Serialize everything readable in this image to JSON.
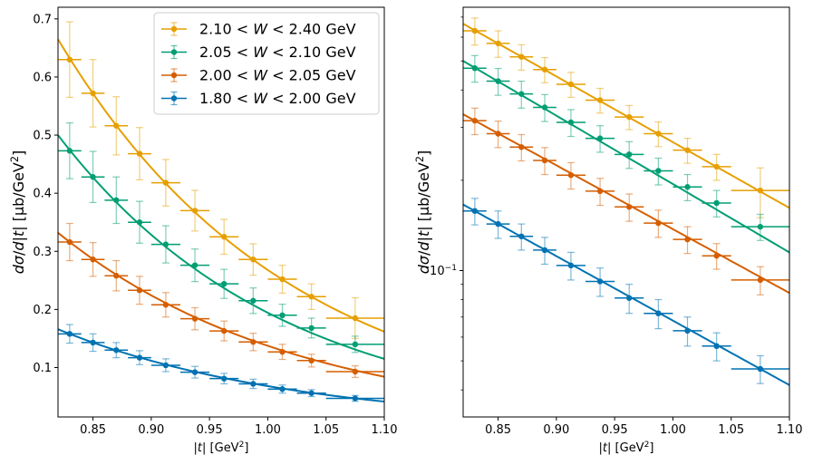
{
  "chart_data": [
    {
      "type": "line",
      "xlabel": "|t| [GeV²]",
      "ylabel": "dσ/d|t| [μb/GeV²]",
      "xscale": "linear",
      "yscale": "linear",
      "xlim": [
        0.82,
        1.1
      ],
      "ylim": [
        0.015,
        0.72
      ],
      "xticks": [
        0.85,
        0.9,
        0.95,
        1.0,
        1.05,
        1.1
      ],
      "xtick_labels": [
        "0.85",
        "0.90",
        "0.95",
        "1.00",
        "1.05",
        "1.10"
      ],
      "yticks": [
        0.1,
        0.2,
        0.3,
        0.4,
        0.5,
        0.6,
        0.7
      ],
      "ytick_labels": [
        "0.1",
        "0.2",
        "0.3",
        "0.4",
        "0.5",
        "0.6",
        "0.7"
      ],
      "grid": false,
      "legend_position": "top-right",
      "legend": [
        "2.10 < W < 2.40 GeV",
        "2.05 < W < 2.10 GeV",
        "2.00 < W < 2.05 GeV",
        "1.80 < W < 2.00 GeV"
      ]
    },
    {
      "type": "line",
      "xlabel": "|t| [GeV²]",
      "ylabel": "dσ/d|t| [μb/GeV²]",
      "xscale": "linear",
      "yscale": "log",
      "xlim": [
        0.82,
        1.1
      ],
      "ylim": [
        0.0325,
        0.755
      ],
      "xticks": [
        0.85,
        0.9,
        0.95,
        1.0,
        1.05,
        1.1
      ],
      "xtick_labels": [
        "0.85",
        "0.90",
        "0.95",
        "1.00",
        "1.05",
        "1.10"
      ],
      "yticks": [
        0.1
      ],
      "ytick_labels": [
        "10⁻¹"
      ],
      "grid": false,
      "legend_position": "none"
    }
  ],
  "series": [
    {
      "name": "2.10 < W < 2.40 GeV",
      "color": "#E69F00",
      "points": [
        {
          "x": 0.83,
          "xerr": 0.01,
          "y": 0.63,
          "yerr": 0.065
        },
        {
          "x": 0.85,
          "xerr": 0.01,
          "y": 0.572,
          "yerr": 0.058
        },
        {
          "x": 0.87,
          "xerr": 0.01,
          "y": 0.516,
          "yerr": 0.05
        },
        {
          "x": 0.89,
          "xerr": 0.01,
          "y": 0.468,
          "yerr": 0.045
        },
        {
          "x": 0.9125,
          "xerr": 0.0125,
          "y": 0.418,
          "yerr": 0.04
        },
        {
          "x": 0.9375,
          "xerr": 0.0125,
          "y": 0.37,
          "yerr": 0.035
        },
        {
          "x": 0.9625,
          "xerr": 0.0125,
          "y": 0.325,
          "yerr": 0.03
        },
        {
          "x": 0.9875,
          "xerr": 0.0125,
          "y": 0.286,
          "yerr": 0.027
        },
        {
          "x": 1.0125,
          "xerr": 0.0125,
          "y": 0.252,
          "yerr": 0.024
        },
        {
          "x": 1.0375,
          "xerr": 0.0125,
          "y": 0.222,
          "yerr": 0.022
        },
        {
          "x": 1.075,
          "xerr": 0.025,
          "y": 0.185,
          "yerr": 0.035
        }
      ],
      "fit": {
        "a": 0.665,
        "b": 5.05
      }
    },
    {
      "name": "2.05 < W < 2.10 GeV",
      "color": "#009E73",
      "points": [
        {
          "x": 0.83,
          "xerr": 0.01,
          "y": 0.473,
          "yerr": 0.048
        },
        {
          "x": 0.85,
          "xerr": 0.01,
          "y": 0.428,
          "yerr": 0.044
        },
        {
          "x": 0.87,
          "xerr": 0.01,
          "y": 0.388,
          "yerr": 0.04
        },
        {
          "x": 0.89,
          "xerr": 0.01,
          "y": 0.35,
          "yerr": 0.036
        },
        {
          "x": 0.9125,
          "xerr": 0.0125,
          "y": 0.312,
          "yerr": 0.032
        },
        {
          "x": 0.9375,
          "xerr": 0.0125,
          "y": 0.276,
          "yerr": 0.028
        },
        {
          "x": 0.9625,
          "xerr": 0.0125,
          "y": 0.244,
          "yerr": 0.025
        },
        {
          "x": 0.9875,
          "xerr": 0.0125,
          "y": 0.215,
          "yerr": 0.022
        },
        {
          "x": 1.0125,
          "xerr": 0.0125,
          "y": 0.19,
          "yerr": 0.019
        },
        {
          "x": 1.0375,
          "xerr": 0.0125,
          "y": 0.168,
          "yerr": 0.017
        },
        {
          "x": 1.075,
          "xerr": 0.025,
          "y": 0.14,
          "yerr": 0.014
        }
      ],
      "fit": {
        "a": 0.5,
        "b": 5.25
      }
    },
    {
      "name": "2.00 < W < 2.05 GeV",
      "color": "#D55E00",
      "points": [
        {
          "x": 0.83,
          "xerr": 0.01,
          "y": 0.316,
          "yerr": 0.032
        },
        {
          "x": 0.85,
          "xerr": 0.01,
          "y": 0.286,
          "yerr": 0.029
        },
        {
          "x": 0.87,
          "xerr": 0.01,
          "y": 0.258,
          "yerr": 0.026
        },
        {
          "x": 0.89,
          "xerr": 0.01,
          "y": 0.233,
          "yerr": 0.024
        },
        {
          "x": 0.9125,
          "xerr": 0.0125,
          "y": 0.208,
          "yerr": 0.021
        },
        {
          "x": 0.9375,
          "xerr": 0.0125,
          "y": 0.184,
          "yerr": 0.019
        },
        {
          "x": 0.9625,
          "xerr": 0.0125,
          "y": 0.163,
          "yerr": 0.017
        },
        {
          "x": 0.9875,
          "xerr": 0.0125,
          "y": 0.144,
          "yerr": 0.015
        },
        {
          "x": 1.0125,
          "xerr": 0.0125,
          "y": 0.127,
          "yerr": 0.013
        },
        {
          "x": 1.0375,
          "xerr": 0.0125,
          "y": 0.112,
          "yerr": 0.011
        },
        {
          "x": 1.075,
          "xerr": 0.025,
          "y": 0.093,
          "yerr": 0.01
        }
      ],
      "fit": {
        "a": 0.332,
        "b": 4.9
      }
    },
    {
      "name": "1.80 < W < 2.00 GeV",
      "color": "#0072B2",
      "points": [
        {
          "x": 0.83,
          "xerr": 0.01,
          "y": 0.158,
          "yerr": 0.016
        },
        {
          "x": 0.85,
          "xerr": 0.01,
          "y": 0.143,
          "yerr": 0.015
        },
        {
          "x": 0.87,
          "xerr": 0.01,
          "y": 0.13,
          "yerr": 0.013
        },
        {
          "x": 0.89,
          "xerr": 0.01,
          "y": 0.117,
          "yerr": 0.012
        },
        {
          "x": 0.9125,
          "xerr": 0.0125,
          "y": 0.104,
          "yerr": 0.011
        },
        {
          "x": 0.9375,
          "xerr": 0.0125,
          "y": 0.092,
          "yerr": 0.01
        },
        {
          "x": 0.9625,
          "xerr": 0.0125,
          "y": 0.081,
          "yerr": 0.009
        },
        {
          "x": 0.9875,
          "xerr": 0.0125,
          "y": 0.072,
          "yerr": 0.008
        },
        {
          "x": 1.0125,
          "xerr": 0.0125,
          "y": 0.063,
          "yerr": 0.007
        },
        {
          "x": 1.0375,
          "xerr": 0.0125,
          "y": 0.056,
          "yerr": 0.006
        },
        {
          "x": 1.075,
          "xerr": 0.025,
          "y": 0.047,
          "yerr": 0.005
        }
      ],
      "fit": {
        "a": 0.166,
        "b": 4.95
      }
    }
  ]
}
